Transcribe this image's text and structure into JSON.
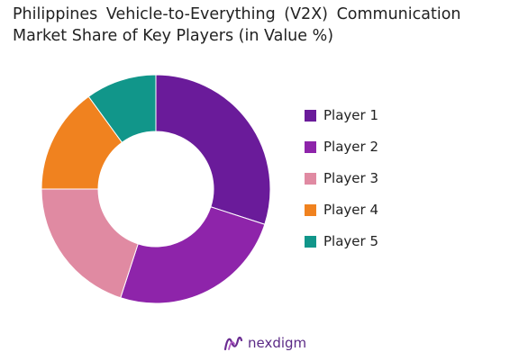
{
  "chart_data": {
    "type": "pie",
    "title": "Philippines Vehicle-to-Everything (V2X) Communication Market Share of Key Players (in Value %)",
    "title_lines": [
      "Philippines Vehicle-to-Everything (V2X) Communication",
      "Market Share of Key Players (in Value %)"
    ],
    "categories": [
      "Player 1",
      "Player 2",
      "Player 3",
      "Player 4",
      "Player 5"
    ],
    "values": [
      30,
      25,
      20,
      15,
      10
    ],
    "colors": [
      "#6a1b9a",
      "#8e24aa",
      "#e08aa2",
      "#f0821f",
      "#11968a"
    ],
    "donut": true,
    "legend_position": "right"
  },
  "brand": {
    "name": "nexdigm",
    "color": "#5b2a86",
    "icon": "nexdigm-logo-icon"
  }
}
